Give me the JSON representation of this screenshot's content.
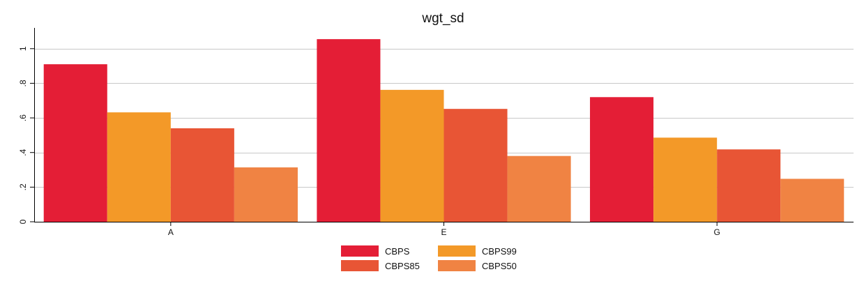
{
  "chart_data": {
    "type": "bar",
    "title": "wgt_sd",
    "xlabel": "",
    "ylabel": "",
    "categories": [
      "A",
      "E",
      "G"
    ],
    "series": [
      {
        "name": "CBPS",
        "color": "#E41E36",
        "values": [
          0.91,
          1.055,
          0.72
        ]
      },
      {
        "name": "CBPS99",
        "color": "#F39928",
        "values": [
          0.632,
          0.762,
          0.486
        ]
      },
      {
        "name": "CBPS85",
        "color": "#E85535",
        "values": [
          0.54,
          0.652,
          0.418
        ]
      },
      {
        "name": "CBPS50",
        "color": "#F08343",
        "values": [
          0.314,
          0.38,
          0.248
        ]
      }
    ],
    "ylim": [
      0,
      1.12
    ],
    "yticks": [
      0,
      0.2,
      0.4,
      0.6,
      0.8,
      1
    ],
    "ytick_labels": [
      "0",
      ".2",
      ".4",
      ".6",
      ".8",
      "1"
    ],
    "grid": true,
    "legend_position": "bottom-center",
    "legend_columns": 2,
    "gridline_color": "#C8C8C8",
    "axis_color": "#000000"
  }
}
